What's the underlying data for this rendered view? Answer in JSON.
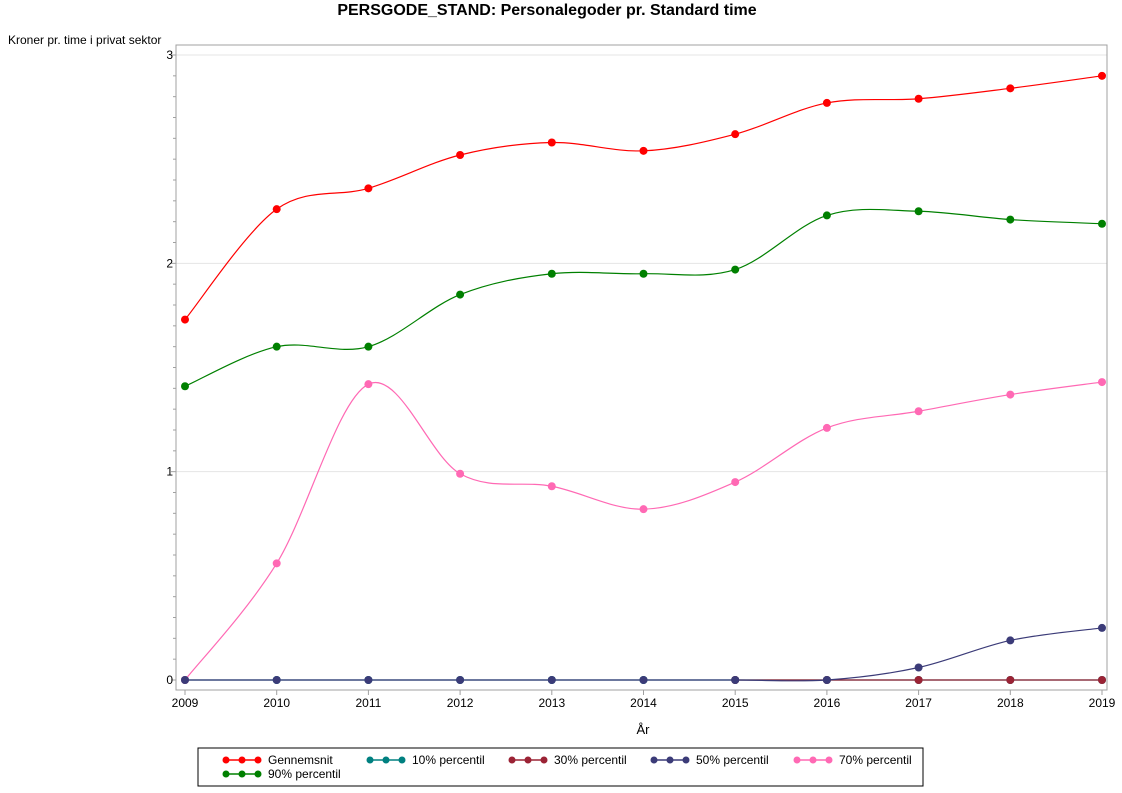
{
  "chart_data": {
    "type": "line",
    "title": "PERSGODE_STAND: Personalegoder pr. Standard time",
    "xlabel": "År",
    "ylabel": "Kroner pr. time i privat sektor",
    "x": [
      2009,
      2010,
      2011,
      2012,
      2013,
      2014,
      2015,
      2016,
      2017,
      2018,
      2019
    ],
    "xlim": [
      2009,
      2019
    ],
    "ylim": [
      0,
      3
    ],
    "yticks": [
      0,
      1,
      2,
      3
    ],
    "grid": true,
    "legend_position": "bottom",
    "series": [
      {
        "name": "Gennemsnit",
        "color": "#ff0000",
        "values": [
          1.73,
          2.26,
          2.36,
          2.52,
          2.58,
          2.54,
          2.62,
          2.77,
          2.79,
          2.84,
          2.9
        ]
      },
      {
        "name": "10% percentil",
        "color": "#008080",
        "values": [
          0,
          0,
          0,
          0,
          0,
          0,
          0,
          0,
          0,
          0,
          0
        ]
      },
      {
        "name": "30% percentil",
        "color": "#9b2335",
        "values": [
          null,
          null,
          null,
          null,
          null,
          null,
          0,
          0,
          0,
          0,
          0
        ]
      },
      {
        "name": "50% percentil",
        "color": "#3b3b78",
        "values": [
          0,
          0,
          0,
          0,
          0,
          0,
          0,
          0,
          0.06,
          0.19,
          0.25
        ]
      },
      {
        "name": "70% percentil",
        "color": "#ff69b4",
        "values": [
          0,
          0.56,
          1.42,
          0.99,
          0.93,
          0.82,
          0.95,
          1.21,
          1.29,
          1.37,
          1.43
        ]
      },
      {
        "name": "90% percentil",
        "color": "#008000",
        "values": [
          1.41,
          1.6,
          1.6,
          1.85,
          1.95,
          1.95,
          1.97,
          2.23,
          2.25,
          2.21,
          2.19
        ]
      }
    ]
  }
}
